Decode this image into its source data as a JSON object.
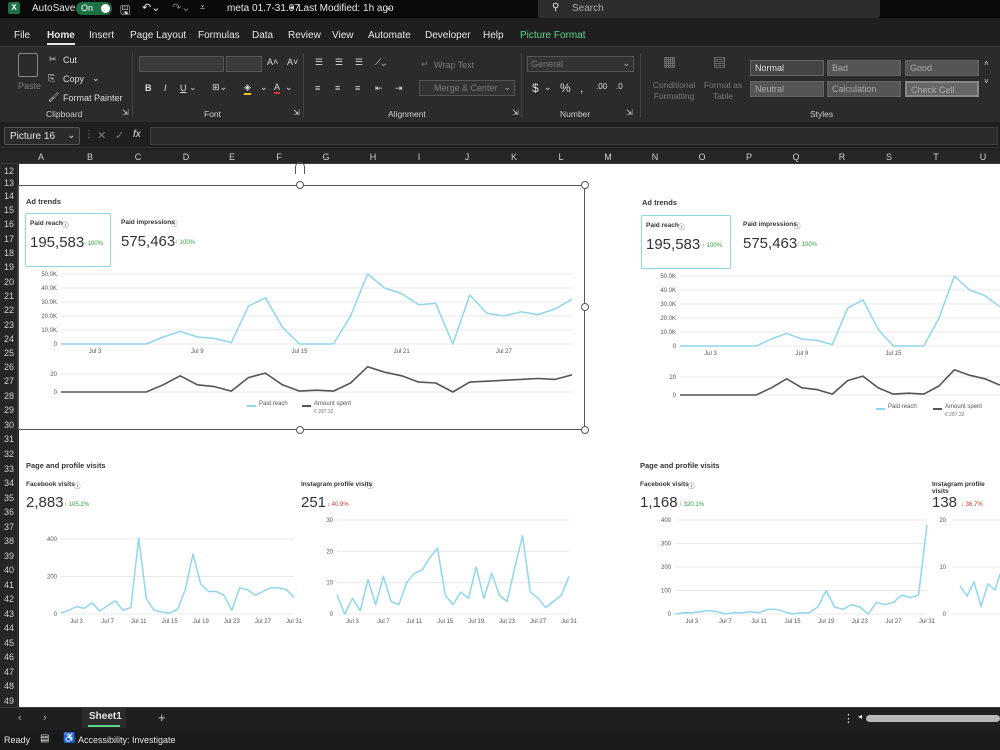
{
  "titlebar": {
    "autosave": "AutoSave",
    "autosave_state": "On",
    "filename": "meta 01.7-31.07",
    "modified": "Last Modified: 1h ago",
    "search_placeholder": "Search"
  },
  "menu": [
    "File",
    "Home",
    "Insert",
    "Page Layout",
    "Formulas",
    "Data",
    "Review",
    "View",
    "Automate",
    "Developer",
    "Help",
    "Picture Format"
  ],
  "ribbon": {
    "paste": "Paste",
    "cut": "Cut",
    "copy": "Copy",
    "format_painter": "Format Painter",
    "clipboard": "Clipboard",
    "font": "Font",
    "bold": "B",
    "italic": "I",
    "underline": "U",
    "wrap_text": "Wrap Text",
    "merge_center": "Merge & Center",
    "alignment": "Alignment",
    "number_format": "General",
    "number": "Number",
    "currency": "$",
    "percent": "%",
    "comma": ",",
    "conditional_formatting": "Conditional Formatting",
    "format_as_table": "Format as Table",
    "styles": "Styles",
    "style_cells": [
      "Normal",
      "Bad",
      "Good",
      "Neutral",
      "Calculation",
      "Check Cell"
    ]
  },
  "formula_bar": {
    "name_box": "Picture 16",
    "fx": "fx"
  },
  "columns": [
    "A",
    "B",
    "C",
    "D",
    "E",
    "F",
    "G",
    "H",
    "I",
    "J",
    "K",
    "L",
    "M",
    "N",
    "O",
    "P",
    "Q",
    "R",
    "S",
    "T",
    "U"
  ],
  "rows": [
    "12",
    "13",
    "14",
    "15",
    "16",
    "17",
    "18",
    "19",
    "20",
    "21",
    "22",
    "23",
    "24",
    "25",
    "26",
    "27",
    "28",
    "29",
    "30",
    "31",
    "32",
    "33",
    "34",
    "35",
    "36",
    "37",
    "38",
    "39",
    "40",
    "41",
    "42",
    "43",
    "44",
    "45",
    "46",
    "47",
    "48",
    "49"
  ],
  "dash1": {
    "ad_title": "Ad trends",
    "paid_reach_label": "Paid reach",
    "paid_reach_value": "195,583",
    "paid_reach_change": "↑ 100%",
    "paid_impr_label": "Paid impressions",
    "paid_impr_value": "575,463",
    "paid_impr_change": "↑ 100%",
    "y_ticks": [
      "50.0K",
      "40.0K",
      "30.0K",
      "20.0K",
      "10.0K",
      "0"
    ],
    "x_ticks": [
      "Jul 3",
      "Jul 9",
      "Jul 15",
      "Jul 21",
      "Jul 27"
    ],
    "y2_ticks": [
      "20",
      "0"
    ],
    "legend_reach": "Paid reach",
    "legend_amount": "Amount spent",
    "legend_amount_sub": "€ 287.32",
    "page_title": "Page and profile visits",
    "fb_label": "Facebook visits",
    "fb_value": "2,883",
    "fb_change": "↑ 105.2%",
    "ig_label": "Instagram profile visits",
    "ig_value": "251",
    "ig_change": "↓ 40.9%",
    "fb_y_ticks": [
      "400",
      "200",
      "0"
    ],
    "ig_y_ticks": [
      "30",
      "20",
      "10",
      "0"
    ],
    "fb_x_ticks": [
      "Jul 3",
      "Jul 7",
      "Jul 11",
      "Jul 15",
      "Jul 19",
      "Jul 23",
      "Jul 27",
      "Jul 31"
    ],
    "ig_x_ticks": [
      "Jul 3",
      "Jul 7",
      "Jul 11",
      "Jul 15",
      "Jul 19",
      "Jul 23",
      "Jul 27",
      "Jul 31"
    ]
  },
  "dash2": {
    "ad_title": "Ad trends",
    "paid_reach_label": "Paid reach",
    "paid_reach_value": "195,583",
    "paid_reach_change": "↑ 100%",
    "paid_impr_label": "Paid impressions",
    "paid_impr_value": "575,463",
    "paid_impr_change": "↑ 100%",
    "y_ticks": [
      "50.0K",
      "40.0K",
      "30.0K",
      "20.0K",
      "10.0K",
      "0"
    ],
    "x_ticks": [
      "Jul 3",
      "Jul 9",
      "Jul 15"
    ],
    "y2_ticks": [
      "20",
      "0"
    ],
    "legend_reach": "Paid reach",
    "legend_amount": "Amount spent",
    "legend_amount_sub": "€ 287.32",
    "page_title": "Page and profile visits",
    "fb_label": "Facebook visits",
    "fb_value": "1,168",
    "fb_change": "↑ 320.1%",
    "ig_label": "Instagram profile visits",
    "ig_value": "138",
    "ig_change": "↓ 36.7%",
    "fb_y_ticks": [
      "400",
      "300",
      "200",
      "100",
      "0"
    ],
    "fb_x_ticks": [
      "Jul 3",
      "Jul 7",
      "Jul 11",
      "Jul 15",
      "Jul 19",
      "Jul 23",
      "Jul 27",
      "Jul 31"
    ],
    "ig_y_ticks": [
      "20",
      "10",
      "0"
    ]
  },
  "chart_data": [
    {
      "type": "line",
      "title": "Ad trends",
      "series": [
        {
          "name": "Paid reach",
          "x": [
            "Jul 1",
            "Jul 2",
            "Jul 3",
            "Jul 4",
            "Jul 5",
            "Jul 6",
            "Jul 7",
            "Jul 8",
            "Jul 9",
            "Jul 10",
            "Jul 11",
            "Jul 12",
            "Jul 13",
            "Jul 14",
            "Jul 15",
            "Jul 16",
            "Jul 17",
            "Jul 18",
            "Jul 19",
            "Jul 20",
            "Jul 21",
            "Jul 22",
            "Jul 23",
            "Jul 24",
            "Jul 25",
            "Jul 26",
            "Jul 27",
            "Jul 28",
            "Jul 29",
            "Jul 30",
            "Jul 31"
          ],
          "values": [
            0,
            0,
            0,
            0,
            0,
            0,
            5000,
            9000,
            5000,
            4000,
            1000,
            27000,
            33000,
            12000,
            0,
            0,
            0,
            20000,
            50000,
            40000,
            36000,
            28000,
            29000,
            0,
            35000,
            22000,
            20000,
            23000,
            21000,
            25000,
            32000
          ]
        }
      ],
      "ylim": [
        0,
        50000
      ]
    },
    {
      "type": "line",
      "title": "Amount spent",
      "series": [
        {
          "name": "Amount spent",
          "values": [
            0,
            0,
            0,
            0,
            0,
            0,
            8,
            18,
            8,
            6,
            1,
            16,
            21,
            8,
            1,
            2,
            1,
            10,
            28,
            22,
            18,
            11,
            10,
            0,
            11,
            12,
            13,
            14,
            15,
            14,
            19
          ]
        }
      ],
      "ylim": [
        0,
        20
      ]
    },
    {
      "type": "line",
      "title": "Facebook visits",
      "series": [
        {
          "name": "Facebook visits",
          "values": [
            5,
            20,
            40,
            30,
            60,
            15,
            45,
            70,
            20,
            35,
            405,
            80,
            20,
            10,
            5,
            25,
            130,
            320,
            160,
            120,
            120,
            100,
            20,
            140,
            130,
            100,
            120,
            140,
            140,
            130,
            90
          ]
        }
      ],
      "ylim": [
        0,
        400
      ]
    },
    {
      "type": "line",
      "title": "Instagram profile visits",
      "series": [
        {
          "name": "Instagram profile visits",
          "values": [
            6,
            0,
            5,
            1,
            11,
            3,
            12,
            4,
            3,
            10,
            13,
            14,
            18,
            21,
            6,
            3,
            7,
            5,
            15,
            5,
            13,
            6,
            4,
            15,
            25,
            7,
            5,
            2,
            4,
            6,
            12
          ]
        }
      ],
      "ylim": [
        0,
        30
      ]
    },
    {
      "type": "line",
      "title": "Facebook visits",
      "series": [
        {
          "name": "Facebook visits",
          "values": [
            0,
            5,
            5,
            10,
            15,
            10,
            0,
            5,
            5,
            10,
            5,
            20,
            20,
            10,
            0,
            5,
            5,
            30,
            100,
            30,
            20,
            40,
            30,
            0,
            50,
            40,
            50,
            80,
            70,
            80,
            380
          ]
        }
      ],
      "ylim": [
        0,
        400
      ]
    }
  ],
  "sheet_tab": "Sheet1",
  "status": {
    "ready": "Ready",
    "accessibility": "Accessibility: Investigate"
  }
}
